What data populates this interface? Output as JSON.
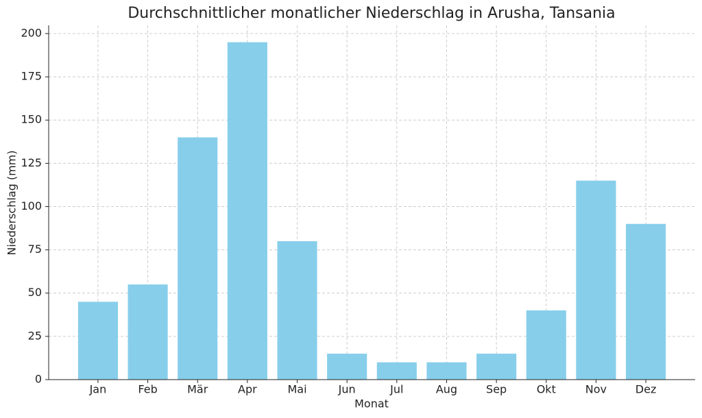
{
  "chart_data": {
    "type": "bar",
    "title": "Durchschnittlicher monatlicher Niederschlag in Arusha, Tansania",
    "x_label": "Monat",
    "y_label": "Niederschlag (mm)",
    "categories": [
      "Jan",
      "Feb",
      "Mär",
      "Apr",
      "Mai",
      "Jun",
      "Jul",
      "Aug",
      "Sep",
      "Okt",
      "Nov",
      "Dez"
    ],
    "values": [
      45,
      55,
      140,
      195,
      80,
      15,
      10,
      10,
      15,
      40,
      115,
      90
    ],
    "color": "#87ceeb",
    "ylim": [
      0,
      204.75
    ],
    "yticks": [
      0,
      25,
      50,
      75,
      100,
      125,
      150,
      175,
      200
    ],
    "grid": true
  }
}
